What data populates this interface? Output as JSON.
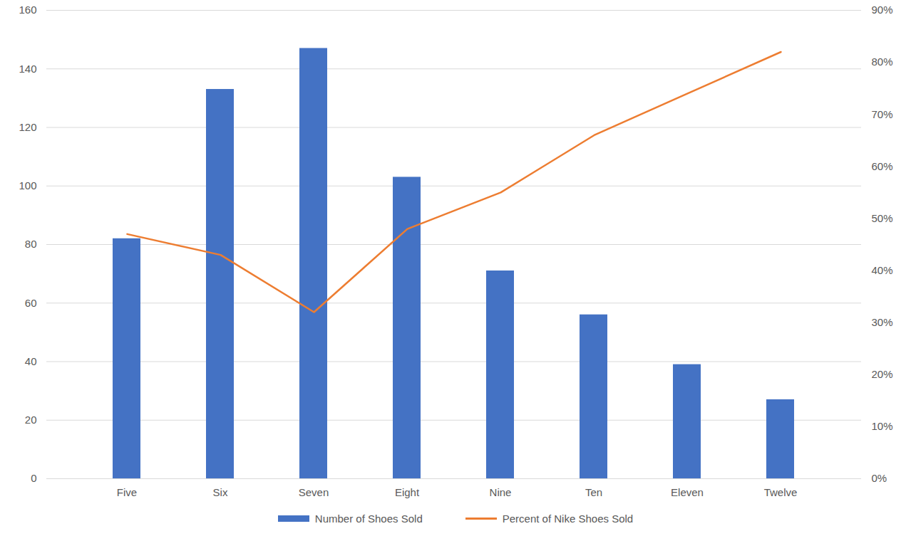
{
  "chart_data": {
    "type": "bar",
    "categories": [
      "Five",
      "Six",
      "Seven",
      "Eight",
      "Nine",
      "Ten",
      "Eleven",
      "Twelve"
    ],
    "series": [
      {
        "name": "Number of Shoes Sold",
        "type": "bar",
        "color": "#4472c4",
        "values": [
          82,
          133,
          147,
          103,
          71,
          56,
          39,
          27
        ]
      },
      {
        "name": "Percent of Nike Shoes Sold",
        "type": "line",
        "color": "#ed7d31",
        "axis": "y2",
        "values": [
          47,
          43,
          32,
          48,
          55,
          66,
          74,
          82
        ]
      }
    ],
    "ylim": [
      0,
      160
    ],
    "yticks": [
      0,
      20,
      40,
      60,
      80,
      100,
      120,
      140,
      160
    ],
    "y2lim": [
      0,
      90
    ],
    "y2ticks": [
      {
        "value": 0,
        "label": "0%"
      },
      {
        "value": 10,
        "label": "10%"
      },
      {
        "value": 20,
        "label": "20%"
      },
      {
        "value": 30,
        "label": "30%"
      },
      {
        "value": 40,
        "label": "40%"
      },
      {
        "value": 50,
        "label": "50%"
      },
      {
        "value": 60,
        "label": "60%"
      },
      {
        "value": 70,
        "label": "70%"
      },
      {
        "value": 80,
        "label": "80%"
      },
      {
        "value": 90,
        "label": "90%"
      }
    ],
    "grid": true,
    "legend": "bottom"
  }
}
